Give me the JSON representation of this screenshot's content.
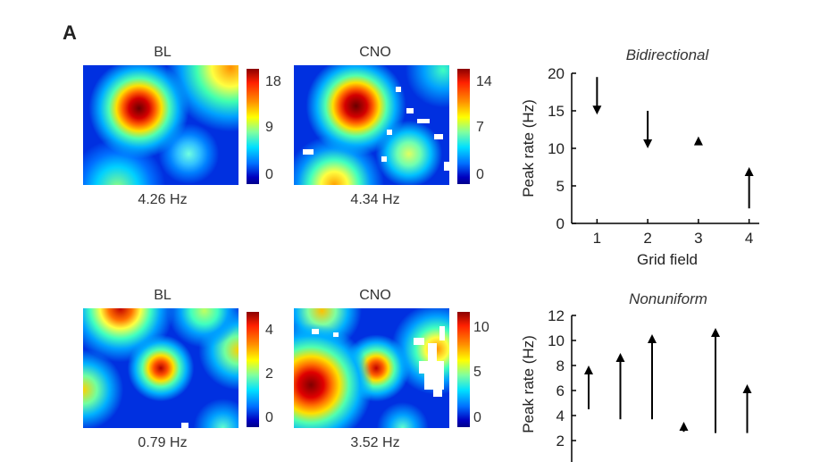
{
  "panel_label": "A",
  "rows": [
    {
      "maps": [
        {
          "title": "BL",
          "mean_rate": "4.26 Hz",
          "colorbar_ticks": [
            "18",
            "9",
            "0"
          ]
        },
        {
          "title": "CNO",
          "mean_rate": "4.34 Hz",
          "colorbar_ticks": [
            "14",
            "7",
            "0"
          ]
        }
      ]
    },
    {
      "maps": [
        {
          "title": "BL",
          "mean_rate": "0.79 Hz",
          "colorbar_ticks": [
            "4",
            "2",
            "0"
          ]
        },
        {
          "title": "CNO",
          "mean_rate": "3.52 Hz",
          "colorbar_ticks": [
            "10",
            "5",
            "0"
          ]
        }
      ]
    }
  ],
  "chart_data": [
    {
      "type": "scatter",
      "title": "Bidirectional",
      "xlabel": "Grid field",
      "ylabel": "Peak rate (Hz)",
      "xlim": [
        0.5,
        4.2
      ],
      "ylim": [
        0,
        20
      ],
      "xticks": [
        1,
        2,
        3,
        4
      ],
      "yticks": [
        0,
        5,
        10,
        15,
        20
      ],
      "arrows": [
        {
          "x": 1,
          "from": 19.5,
          "to": 14.5
        },
        {
          "x": 2,
          "from": 15,
          "to": 10
        },
        {
          "x": 3,
          "from": 11,
          "to": 11
        },
        {
          "x": 4,
          "from": 2,
          "to": 7.5
        }
      ]
    },
    {
      "type": "scatter",
      "title": "Nonuniform",
      "xlabel": "",
      "ylabel": "Peak rate (Hz)",
      "ylim": [
        0,
        12
      ],
      "yticks": [
        2,
        4,
        6,
        8,
        10,
        12
      ],
      "arrows": [
        {
          "x": 1,
          "from": 4.5,
          "to": 8
        },
        {
          "x": 2,
          "from": 3.7,
          "to": 9
        },
        {
          "x": 3,
          "from": 3.7,
          "to": 10.5
        },
        {
          "x": 4,
          "from": 2.7,
          "to": 3.5
        },
        {
          "x": 5,
          "from": 2.6,
          "to": 11
        },
        {
          "x": 6,
          "from": 2.6,
          "to": 6.5
        }
      ]
    }
  ],
  "colors": {
    "low": "#0000b4",
    "high": "#8b0000",
    "arrow": "#000000"
  }
}
